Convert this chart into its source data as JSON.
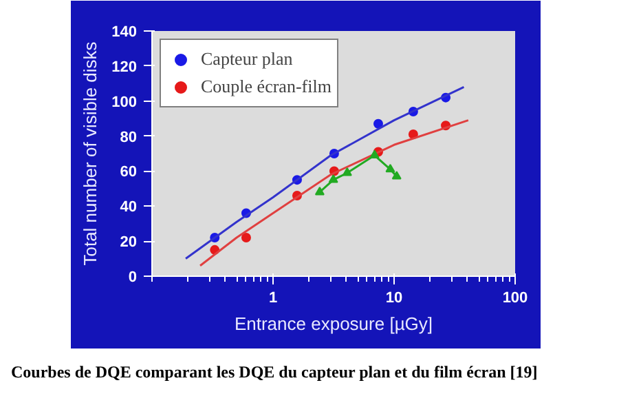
{
  "chart_data": {
    "type": "scatter",
    "xlabel": "Entrance exposure [µGy]",
    "ylabel": "Total number of visible disks",
    "log": "x",
    "xlim": [
      0.1,
      100
    ],
    "xticks": [
      1,
      10,
      100
    ],
    "ylim": [
      0,
      140
    ],
    "yticks": [
      0,
      20,
      40,
      60,
      80,
      100,
      120,
      140
    ],
    "grid": false,
    "legend": "top left",
    "series": [
      {
        "name": "Capteur plan",
        "marker": "circle",
        "color": "#1a1ae6",
        "x": [
          0.33,
          0.6,
          1.58,
          3.2,
          7.4,
          14.4,
          26.7
        ],
        "values": [
          22,
          36,
          55,
          70,
          87,
          94,
          102
        ]
      },
      {
        "name": "Couple écran-film",
        "marker": "circle",
        "color": "#e61a1a",
        "x": [
          0.33,
          0.6,
          1.58,
          3.2,
          7.4,
          14.4,
          26.7
        ],
        "values": [
          15,
          22,
          46,
          60,
          71,
          81,
          86
        ]
      },
      {
        "type": "line",
        "marker": "none",
        "color": "#3333cc",
        "x": [
          0.19,
          0.5,
          1,
          3,
          10,
          37.7
        ],
        "values": [
          10,
          31,
          45,
          69,
          89,
          108
        ]
      },
      {
        "type": "line",
        "marker": "none",
        "color": "#e04040",
        "x": [
          0.25,
          0.5,
          1,
          3,
          10,
          41
        ],
        "values": [
          6,
          22,
          36,
          58,
          75,
          89
        ]
      },
      {
        "type": "line",
        "marker": "triangle",
        "color": "#22aa22",
        "x": [
          2.43,
          3.15,
          4.1,
          6.9,
          9.3,
          10.5
        ],
        "values": [
          48,
          55,
          59,
          69,
          61,
          57
        ]
      }
    ],
    "annotations": [
      "Courbes de DQE comparant les DQE du capteur plan et du film écran [19]"
    ]
  }
}
